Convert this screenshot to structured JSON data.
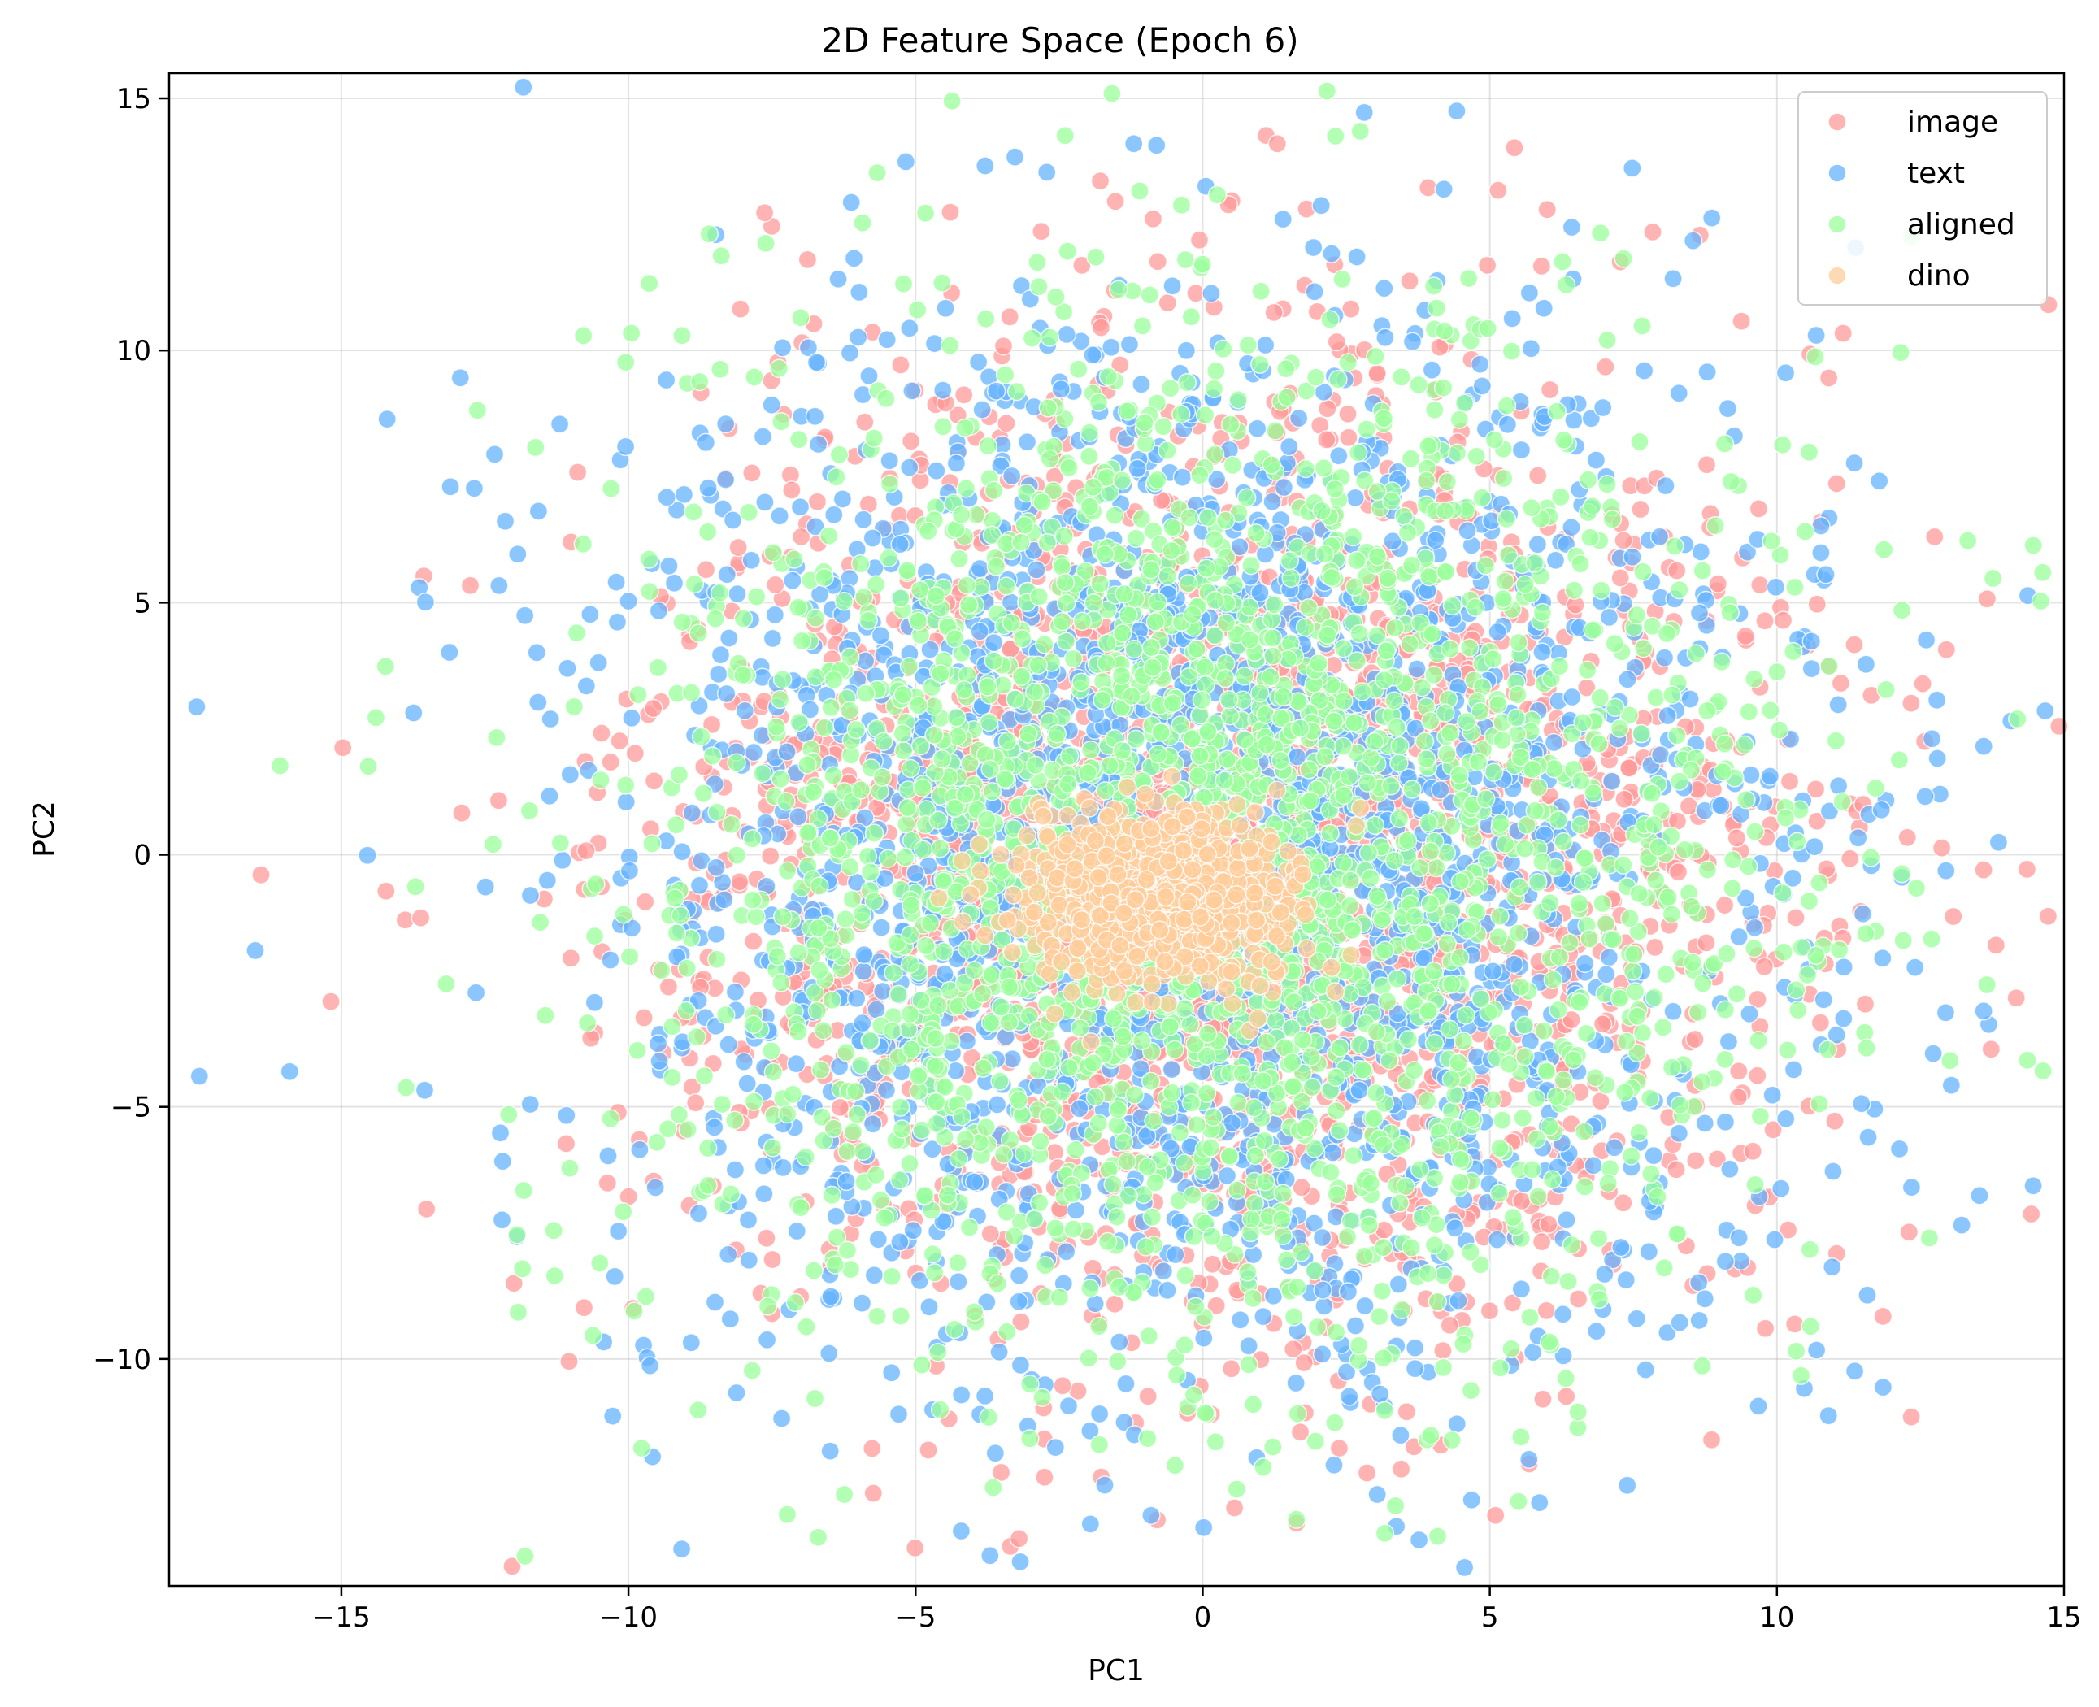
{
  "chart_data": {
    "type": "scatter",
    "title": "2D Feature Space (Epoch 6)",
    "xlabel": "PC1",
    "ylabel": "PC2",
    "xlim": [
      -18,
      15
    ],
    "ylim": [
      -14.5,
      15.5
    ],
    "xticks": [
      -15,
      -10,
      -5,
      0,
      5,
      10,
      15
    ],
    "yticks": [
      -10,
      -5,
      0,
      5,
      10,
      15
    ],
    "xtick_labels": [
      "−15",
      "−10",
      "−5",
      "0",
      "5",
      "10",
      "15"
    ],
    "ytick_labels": [
      "−10",
      "−5",
      "0",
      "5",
      "10",
      "15"
    ],
    "grid": true,
    "legend_position": "top-right",
    "series": [
      {
        "name": "image",
        "color": "#ff9999",
        "count": 2500,
        "distribution": {
          "center": [
            0.5,
            0.0
          ],
          "spread": [
            4.8,
            4.8
          ]
        },
        "extreme_points": [
          [
            -16.4,
            -0.4
          ],
          [
            13.6,
            -0.3
          ],
          [
            1.3,
            14.1
          ],
          [
            5.1,
            -13.1
          ],
          [
            -7.5,
            -9.1
          ],
          [
            11.5,
            1.0
          ],
          [
            -11.0,
            6.2
          ],
          [
            2.3,
            11.7
          ]
        ]
      },
      {
        "name": "text",
        "color": "#66b3ff",
        "count": 2500,
        "distribution": {
          "center": [
            0.0,
            0.0
          ],
          "spread": [
            5.2,
            5.2
          ]
        },
        "extreme_points": [
          [
            -16.5,
            -1.9
          ],
          [
            -15.9,
            -4.3
          ],
          [
            13.6,
            -3.1
          ],
          [
            -1.2,
            14.1
          ],
          [
            -0.9,
            -13.1
          ],
          [
            12.7,
            2.3
          ],
          [
            -13.1,
            7.3
          ],
          [
            4.2,
            13.2
          ]
        ]
      },
      {
        "name": "aligned",
        "color": "#99ff99",
        "count": 2500,
        "distribution": {
          "center": [
            0.0,
            0.0
          ],
          "spread": [
            4.9,
            4.9
          ]
        },
        "extreme_points": [
          [
            -10.5,
            -8.1
          ],
          [
            12.2,
            -1.7
          ],
          [
            -0.3,
            11.8
          ],
          [
            -1.8,
            -11.7
          ],
          [
            -10.9,
            4.4
          ],
          [
            9.2,
            7.4
          ]
        ]
      },
      {
        "name": "dino",
        "color": "#ffcc99",
        "count": 1000,
        "distribution": {
          "center": [
            -0.8,
            -0.8
          ],
          "spread": [
            1.1,
            0.8
          ]
        },
        "extreme_points": [
          [
            -3.4,
            -1.3
          ],
          [
            1.0,
            -2.6
          ],
          [
            -1.0,
            1.2
          ],
          [
            0.6,
            1.0
          ]
        ]
      }
    ]
  }
}
